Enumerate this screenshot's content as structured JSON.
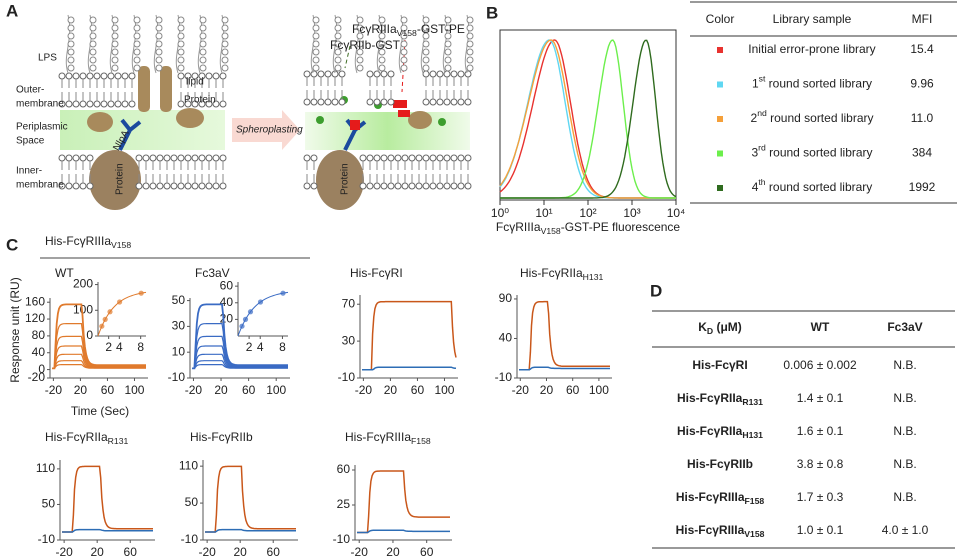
{
  "panel_a": {
    "letter": "A",
    "lps": "LPS",
    "outer": [
      "Outer-",
      "membrane"
    ],
    "periplasmic": [
      "Periplasmic",
      "Space"
    ],
    "inner": [
      "Inner-",
      "membrane"
    ],
    "lipid": "lipid",
    "protein": "Protein",
    "nlpa": "NlpA",
    "cell_protein": "Protein",
    "spheroplasting": "Spheroplasting",
    "probe_red": {
      "main": "FcγRIIIa",
      "sub": "V158",
      "rest": "-GST-PE"
    },
    "probe_green": "FcγRIIb-GST",
    "cell_protein_2": "Protein"
  },
  "panel_b": {
    "letter": "B",
    "chart": {
      "type": "histogram",
      "log_x": true,
      "xlim": [
        1,
        10000
      ],
      "xticks": [
        {
          "value": 1,
          "label": "10⁰"
        },
        {
          "value": 10,
          "label": "10¹"
        },
        {
          "value": 100,
          "label": "10²"
        },
        {
          "value": 1000,
          "label": "10³"
        },
        {
          "value": 10000,
          "label": "10⁴"
        }
      ],
      "xlabel": {
        "main": "FcγRIIIa",
        "sub": "V158",
        "rest": "-GST-PE fluorescence"
      }
    },
    "table": {
      "headers": [
        "Color",
        "Library sample",
        "MFI"
      ],
      "rows": [
        {
          "color": "#e8322f",
          "sample": {
            "main": "Initial error-prone library"
          },
          "mfi": "15.4"
        },
        {
          "color": "#5fd7f2",
          "sample": {
            "num": "1",
            "sup": "st",
            "rest": " round sorted library"
          },
          "mfi": "9.96"
        },
        {
          "color": "#f5a03a",
          "sample": {
            "num": "2",
            "sup": "nd",
            "rest": " round sorted library"
          },
          "mfi": "11.0"
        },
        {
          "color": "#6cef4c",
          "sample": {
            "num": "3",
            "sup": "rd",
            "rest": " round sorted library"
          },
          "mfi": "384"
        },
        {
          "color": "#2f6b1e",
          "sample": {
            "num": "4",
            "sup": "th",
            "rest": " round sorted library"
          },
          "mfi": "1992"
        }
      ]
    }
  },
  "panel_c": {
    "letter": "C",
    "group_title": {
      "main": "His-FcγRIIIa",
      "sub": "V158"
    },
    "ylabel": "Response unit (RU)",
    "xlabel": "Time (Sec)",
    "charts": [
      {
        "title": "WT",
        "title_color": "#e07a2c",
        "xlim": [
          -25,
          120
        ],
        "ylim": [
          -20,
          170
        ],
        "xticks": [
          -20,
          20,
          60,
          100
        ],
        "yticks": [
          -20,
          0,
          40,
          80,
          120,
          160
        ],
        "inset": {
          "xlim": [
            0,
            9
          ],
          "ylim": [
            0,
            210
          ],
          "xticks": [
            2,
            4,
            8
          ],
          "yticks": [
            0,
            100,
            200
          ]
        }
      },
      {
        "title": "Fc3aV",
        "title_color": "#3a6bc4",
        "xlim": [
          -25,
          120
        ],
        "ylim": [
          -10,
          52
        ],
        "xticks": [
          -20,
          20,
          60,
          100
        ],
        "yticks": [
          -10,
          10,
          30,
          50
        ],
        "inset": {
          "xlim": [
            0,
            9
          ],
          "ylim": [
            0,
            65
          ],
          "xticks": [
            2,
            4,
            8
          ],
          "yticks": [
            20,
            40,
            60
          ]
        }
      },
      {
        "title": "His-FcγRI",
        "xlim": [
          -25,
          120
        ],
        "ylim": [
          -10,
          80
        ],
        "xticks": [
          -20,
          20,
          60,
          100
        ],
        "yticks": [
          -10,
          30,
          70
        ]
      },
      {
        "title": {
          "main": "His-FcγRIIa",
          "sub": "H131"
        },
        "xlim": [
          -25,
          120
        ],
        "ylim": [
          -10,
          95
        ],
        "xticks": [
          -20,
          20,
          60,
          100
        ],
        "yticks": [
          -10,
          40,
          90
        ]
      },
      {
        "title": {
          "main": "His-FcγRIIa",
          "sub": "R131"
        },
        "xlim": [
          -25,
          90
        ],
        "ylim": [
          -10,
          125
        ],
        "xticks": [
          -20,
          20,
          60
        ],
        "yticks": [
          -10,
          50,
          110
        ]
      },
      {
        "title": "His-FcγRIIb",
        "xlim": [
          -25,
          90
        ],
        "ylim": [
          -10,
          120
        ],
        "xticks": [
          -20,
          20,
          60
        ],
        "yticks": [
          -10,
          50,
          110
        ]
      },
      {
        "title": {
          "main": "His-FcγRIIIa",
          "sub": "F158"
        },
        "xlim": [
          -25,
          90
        ],
        "ylim": [
          -10,
          65
        ],
        "xticks": [
          -20,
          20,
          60
        ],
        "yticks": [
          -10,
          25,
          60
        ]
      }
    ]
  },
  "panel_d": {
    "letter": "D",
    "headers": [
      {
        "main": "K",
        "sub": "D",
        "rest": " (μM)"
      },
      "WT",
      "Fc3aV"
    ],
    "rows": [
      [
        {
          "main": "His-FcγRI"
        },
        "0.006 ± 0.002",
        "N.B."
      ],
      [
        {
          "main": "His-FcγRIIa",
          "sub": "R131"
        },
        "1.4 ± 0.1",
        "N.B."
      ],
      [
        {
          "main": "His-FcγRIIa",
          "sub": "H131"
        },
        "1.6 ± 0.1",
        "N.B."
      ],
      [
        {
          "main": "His-FcγRIIb"
        },
        "3.8 ± 0.8",
        "N.B."
      ],
      [
        {
          "main": "His-FcγRIIIa",
          "sub": "F158"
        },
        "1.7 ± 0.3",
        "N.B."
      ],
      [
        {
          "main": "His-FcγRIIIa",
          "sub": "V158"
        },
        "1.0 ± 0.1",
        "4.0 ± 1.0"
      ]
    ]
  }
}
